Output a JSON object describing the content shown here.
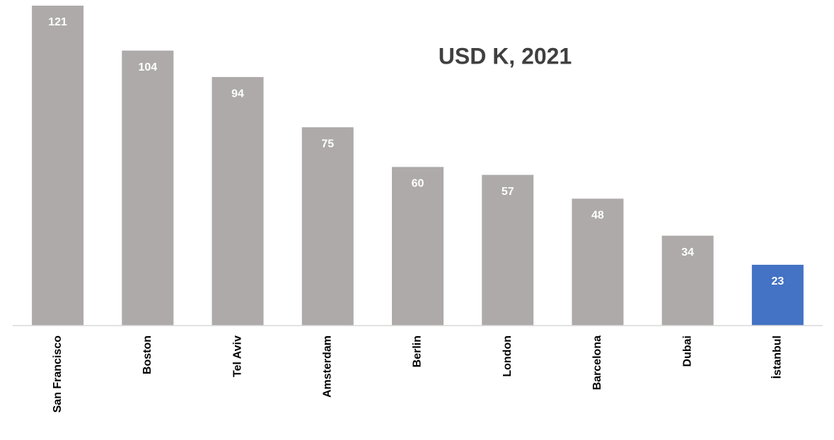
{
  "chart_data": {
    "type": "bar",
    "title": "USD K, 2021",
    "categories": [
      "San Francisco",
      "Boston",
      "Tel Aviv",
      "Amsterdam",
      "Berlin",
      "London",
      "Barcelona",
      "Dubai",
      "İstanbul"
    ],
    "values": [
      121,
      104,
      94,
      75,
      60,
      57,
      48,
      34,
      23
    ],
    "colors": [
      "#aeaaaa",
      "#aeaaaa",
      "#aeaaaa",
      "#aeaaaa",
      "#aeaaaa",
      "#aeaaaa",
      "#aeaaaa",
      "#aeaaaa",
      "#4472c4"
    ]
  }
}
